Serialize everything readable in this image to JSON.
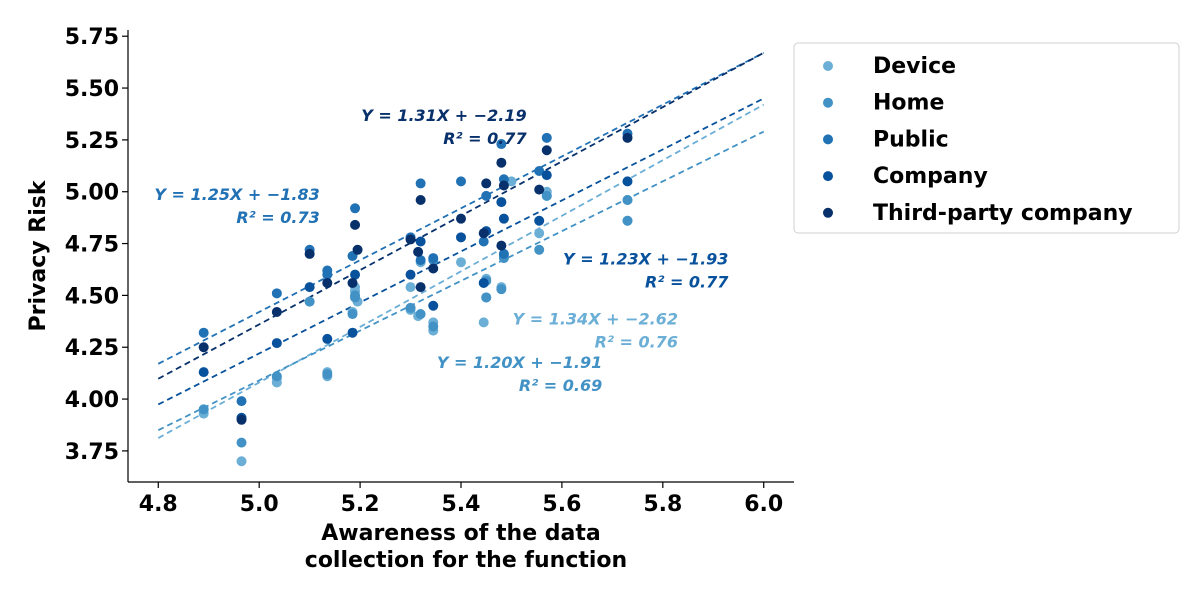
{
  "chart_data": {
    "type": "scatter",
    "xlabel_lines": [
      "Awareness of the data",
      "collection for the function"
    ],
    "ylabel": "Privacy Risk",
    "xlim": [
      4.74,
      6.06
    ],
    "ylim": [
      3.6,
      5.78
    ],
    "xticks": [
      4.8,
      5.0,
      5.2,
      5.4,
      5.6,
      5.8,
      6.0
    ],
    "xtick_labels": [
      "4.8",
      "5.0",
      "5.2",
      "5.4",
      "5.6",
      "5.8",
      "6.0"
    ],
    "yticks": [
      3.75,
      4.0,
      4.25,
      4.5,
      4.75,
      5.0,
      5.25,
      5.5,
      5.75
    ],
    "ytick_labels": [
      "3.75",
      "4.00",
      "4.25",
      "4.50",
      "4.75",
      "5.00",
      "5.25",
      "5.50",
      "5.75"
    ],
    "legend_position": "outside-right",
    "series": [
      {
        "name": "Device",
        "color": "#6baed6",
        "points": [
          [
            4.89,
            3.95
          ],
          [
            4.89,
            3.93
          ],
          [
            4.965,
            3.7
          ],
          [
            5.035,
            4.08
          ],
          [
            5.035,
            4.1
          ],
          [
            5.1,
            4.47
          ],
          [
            5.135,
            4.11
          ],
          [
            5.135,
            4.13
          ],
          [
            5.185,
            4.42
          ],
          [
            5.19,
            4.52
          ],
          [
            5.19,
            4.54
          ],
          [
            5.195,
            4.47
          ],
          [
            5.3,
            4.43
          ],
          [
            5.3,
            4.54
          ],
          [
            5.315,
            4.4
          ],
          [
            5.32,
            4.66
          ],
          [
            5.345,
            4.37
          ],
          [
            5.345,
            4.33
          ],
          [
            5.4,
            4.66
          ],
          [
            5.445,
            4.37
          ],
          [
            5.45,
            4.58
          ],
          [
            5.45,
            4.49
          ],
          [
            5.48,
            4.54
          ],
          [
            5.485,
            4.69
          ],
          [
            5.5,
            5.05
          ],
          [
            5.555,
            4.8
          ],
          [
            5.57,
            4.98
          ],
          [
            5.57,
            5.0
          ],
          [
            5.73,
            4.96
          ],
          [
            5.73,
            4.86
          ]
        ],
        "line": {
          "x": [
            4.8,
            6.0
          ],
          "y": [
            3.812,
            5.42
          ]
        },
        "equation": "Y = 1.34X + −2.62",
        "r2": "R² = 0.76"
      },
      {
        "name": "Home",
        "color": "#4292c6",
        "points": [
          [
            4.89,
            3.95
          ],
          [
            4.965,
            3.79
          ],
          [
            5.035,
            4.11
          ],
          [
            5.1,
            4.47
          ],
          [
            5.135,
            4.12
          ],
          [
            5.185,
            4.41
          ],
          [
            5.19,
            4.49
          ],
          [
            5.19,
            4.5
          ],
          [
            5.3,
            4.44
          ],
          [
            5.32,
            4.41
          ],
          [
            5.345,
            4.35
          ],
          [
            5.345,
            4.67
          ],
          [
            5.45,
            4.49
          ],
          [
            5.45,
            4.57
          ],
          [
            5.48,
            4.53
          ],
          [
            5.485,
            4.68
          ],
          [
            5.555,
            4.72
          ],
          [
            5.57,
            4.98
          ],
          [
            5.73,
            4.86
          ],
          [
            5.73,
            4.96
          ]
        ],
        "line": {
          "x": [
            4.8,
            6.0
          ],
          "y": [
            3.85,
            5.29
          ]
        },
        "equation": "Y = 1.20X + −1.91",
        "r2": "R² = 0.69"
      },
      {
        "name": "Public",
        "color": "#2171b5",
        "points": [
          [
            4.89,
            4.32
          ],
          [
            4.965,
            3.99
          ],
          [
            5.035,
            4.51
          ],
          [
            5.1,
            4.72
          ],
          [
            5.135,
            4.62
          ],
          [
            5.135,
            4.6
          ],
          [
            5.185,
            4.69
          ],
          [
            5.19,
            4.92
          ],
          [
            5.3,
            4.78
          ],
          [
            5.32,
            5.04
          ],
          [
            5.32,
            4.67
          ],
          [
            5.345,
            4.68
          ],
          [
            5.4,
            5.05
          ],
          [
            5.445,
            4.76
          ],
          [
            5.45,
            4.98
          ],
          [
            5.48,
            5.23
          ],
          [
            5.485,
            5.06
          ],
          [
            5.485,
            4.7
          ],
          [
            5.555,
            5.1
          ],
          [
            5.57,
            5.26
          ],
          [
            5.73,
            5.28
          ]
        ],
        "line": {
          "x": [
            4.8,
            6.0
          ],
          "y": [
            4.17,
            5.67
          ]
        },
        "equation": "Y = 1.25X + −1.83",
        "r2": "R² = 0.73"
      },
      {
        "name": "Company",
        "color": "#08519c",
        "points": [
          [
            4.89,
            4.13
          ],
          [
            4.965,
            3.91
          ],
          [
            5.035,
            4.27
          ],
          [
            5.1,
            4.54
          ],
          [
            5.135,
            4.29
          ],
          [
            5.185,
            4.32
          ],
          [
            5.19,
            4.6
          ],
          [
            5.3,
            4.6
          ],
          [
            5.32,
            4.76
          ],
          [
            5.345,
            4.45
          ],
          [
            5.4,
            4.78
          ],
          [
            5.445,
            4.56
          ],
          [
            5.45,
            4.81
          ],
          [
            5.48,
            4.95
          ],
          [
            5.485,
            4.87
          ],
          [
            5.555,
            4.86
          ],
          [
            5.57,
            5.08
          ],
          [
            5.73,
            5.05
          ]
        ],
        "line": {
          "x": [
            4.8,
            6.0
          ],
          "y": [
            3.974,
            5.45
          ]
        },
        "equation": "Y = 1.23X + −1.93",
        "r2": "R² = 0.77"
      },
      {
        "name": "Third-party company",
        "color": "#08306b",
        "points": [
          [
            4.89,
            4.25
          ],
          [
            4.965,
            3.9
          ],
          [
            5.035,
            4.42
          ],
          [
            5.1,
            4.7
          ],
          [
            5.135,
            4.56
          ],
          [
            5.185,
            4.56
          ],
          [
            5.19,
            4.84
          ],
          [
            5.195,
            4.72
          ],
          [
            5.3,
            4.77
          ],
          [
            5.315,
            4.71
          ],
          [
            5.32,
            4.96
          ],
          [
            5.32,
            4.54
          ],
          [
            5.345,
            4.63
          ],
          [
            5.4,
            4.87
          ],
          [
            5.445,
            4.8
          ],
          [
            5.45,
            5.04
          ],
          [
            5.48,
            5.14
          ],
          [
            5.48,
            4.74
          ],
          [
            5.485,
            5.03
          ],
          [
            5.555,
            5.01
          ],
          [
            5.57,
            5.2
          ],
          [
            5.73,
            5.26
          ]
        ],
        "line": {
          "x": [
            4.8,
            6.0
          ],
          "y": [
            4.098,
            5.67
          ]
        },
        "equation": "Y = 1.31X + −2.19",
        "r2": "R² = 0.77"
      }
    ],
    "annotations": [
      {
        "series": 4,
        "line1": "Y = 1.31X + −2.19",
        "line2": "R² = 0.77",
        "x": 5.53,
        "y": 5.34,
        "anchor": "end",
        "color": "#08306b"
      },
      {
        "series": 2,
        "line1": "Y = 1.25X + −1.83",
        "line2": "R² = 0.73",
        "x": 5.12,
        "y": 4.96,
        "anchor": "end",
        "color": "#2171b5"
      },
      {
        "series": 3,
        "line1": "Y = 1.23X + −1.93",
        "line2": "R² = 0.77",
        "x": 5.93,
        "y": 4.65,
        "anchor": "end",
        "color": "#08519c"
      },
      {
        "series": 0,
        "line1": "Y = 1.34X + −2.62",
        "line2": "R² = 0.76",
        "x": 5.83,
        "y": 4.36,
        "anchor": "end",
        "color": "#6baed6"
      },
      {
        "series": 1,
        "line1": "Y = 1.20X + −1.91",
        "line2": "R² = 0.69",
        "x": 5.68,
        "y": 4.15,
        "anchor": "end",
        "color": "#4292c6"
      }
    ]
  }
}
